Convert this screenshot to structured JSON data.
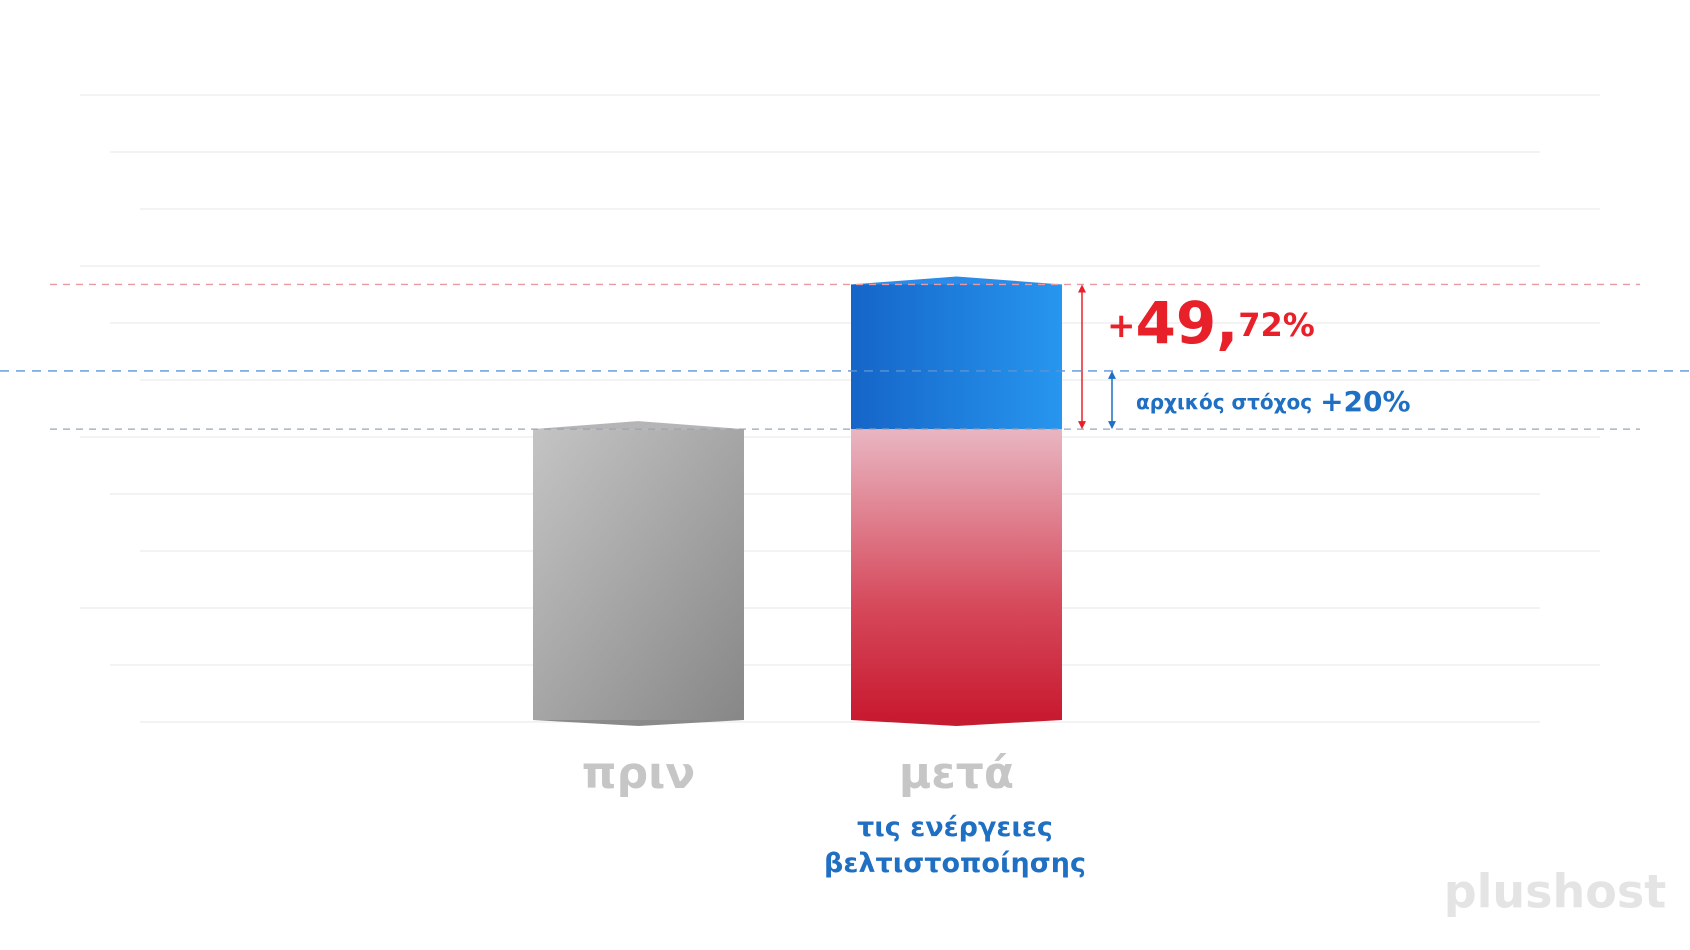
{
  "chart_data": {
    "type": "stacked_bar",
    "categories": [
      "πριν",
      "μετά"
    ],
    "category_note": "τις ενέργειες βελτιστοποίησης",
    "series": [
      {
        "colors": [
          "#9a9a9a",
          "#d8344a"
        ],
        "values": [
          100,
          100
        ]
      },
      {
        "color": "#1f7fe0",
        "values": [
          null,
          49.72
        ],
        "value_labels": [
          null,
          "+49,72%"
        ]
      }
    ],
    "target": {
      "value": 20,
      "label": "αρχικός στόχος",
      "value_label": "+20%"
    },
    "ylim": [
      0,
      220
    ],
    "logo": "plushost"
  }
}
